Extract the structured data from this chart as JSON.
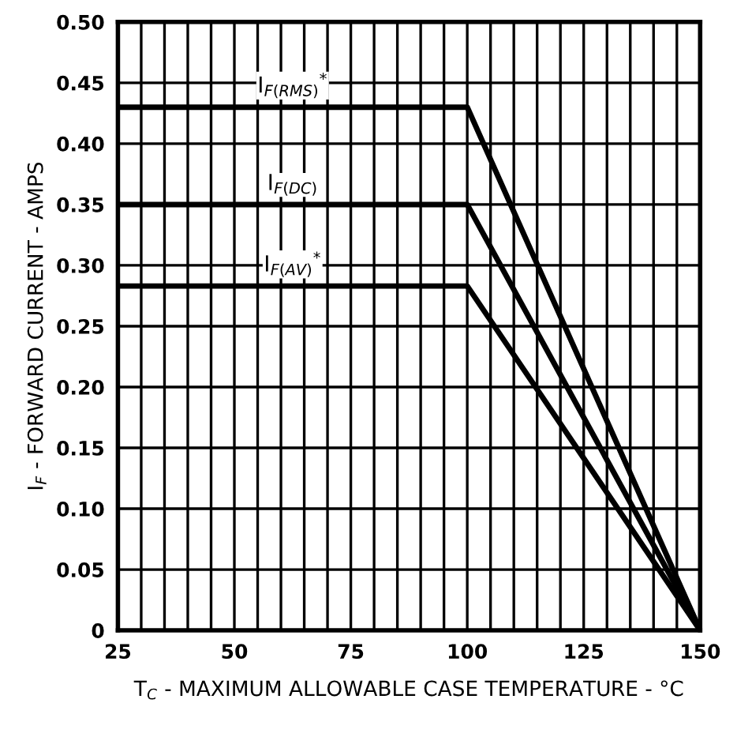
{
  "chart_data": {
    "type": "line",
    "xlabel": "T$_{C}$ - MAXIMUM ALLOWABLE CASE TEMPERATURE - °C",
    "ylabel": "I$_{F}$ - FORWARD CURRENT - AMPS",
    "x": [
      25,
      100,
      150
    ],
    "series": [
      {
        "name": "I$_{F(RMS)}$$^{*}$",
        "color": "#000000",
        "values": [
          0.43,
          0.43,
          0
        ]
      },
      {
        "name": "I$_{F(DC)}$",
        "color": "#000000",
        "values": [
          0.35,
          0.35,
          0
        ]
      },
      {
        "name": "I$_{F(AV)}$$^{*}$",
        "color": "#000000",
        "values": [
          0.283,
          0.283,
          0
        ]
      }
    ],
    "xlim": [
      25,
      150
    ],
    "xticks": [
      25,
      {
        "value": 30,
        "label": null
      },
      {
        "value": 35,
        "label": null
      },
      {
        "value": 40,
        "label": null
      },
      {
        "value": 45,
        "label": null
      },
      50,
      {
        "value": 55,
        "label": null
      },
      {
        "value": 60,
        "label": null
      },
      {
        "value": 65,
        "label": null
      },
      {
        "value": 70,
        "label": null
      },
      75,
      {
        "value": 80,
        "label": null
      },
      {
        "value": 85,
        "label": null
      },
      {
        "value": 90,
        "label": null
      },
      {
        "value": 95,
        "label": null
      },
      100,
      {
        "value": 105,
        "label": null
      },
      {
        "value": 110,
        "label": null
      },
      {
        "value": 115,
        "label": null
      },
      {
        "value": 120,
        "label": null
      },
      125,
      {
        "value": 130,
        "label": null
      },
      {
        "value": 135,
        "label": null
      },
      {
        "value": 140,
        "label": null
      },
      {
        "value": 145,
        "label": null
      },
      150
    ],
    "ylim": [
      0,
      0.5
    ],
    "yticks": [
      {
        "value": 0,
        "label": "0"
      },
      {
        "value": 0.05,
        "label": "0.05"
      },
      {
        "value": 0.1,
        "label": "0.10"
      },
      {
        "value": 0.15,
        "label": "0.15"
      },
      {
        "value": 0.2,
        "label": "0.20"
      },
      {
        "value": 0.25,
        "label": "0.25"
      },
      {
        "value": 0.3,
        "label": "0.30"
      },
      {
        "value": 0.35,
        "label": "0.35"
      },
      {
        "value": 0.4,
        "label": "0.40"
      },
      {
        "value": 0.45,
        "label": "0.45"
      },
      {
        "value": 0.5,
        "label": "0.50"
      }
    ],
    "grid": true,
    "marker": "none",
    "line_style": "solid",
    "legend": false
  }
}
